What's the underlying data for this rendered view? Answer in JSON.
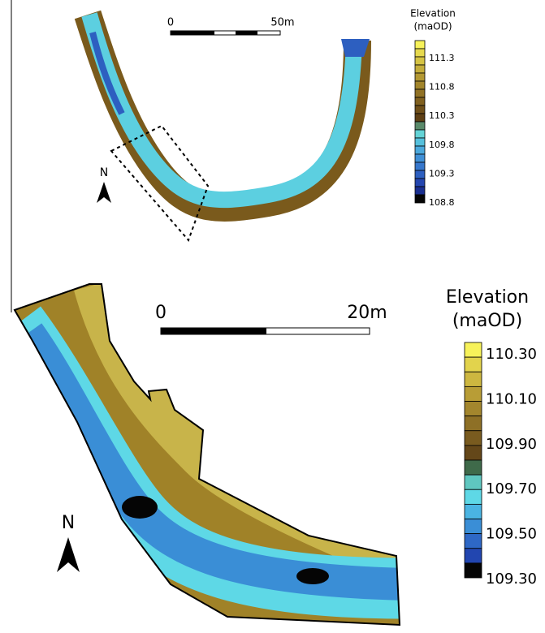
{
  "top_map": {
    "scale_bar": {
      "start": "0",
      "end": "50m"
    },
    "north": "N",
    "legend": {
      "title": [
        "Elevation",
        "(maOD)"
      ],
      "labels": [
        "111.3",
        "110.8",
        "110.3",
        "109.8",
        "109.3",
        "108.8"
      ],
      "colors": [
        "#f7f25a",
        "#e6d94e",
        "#d5c343",
        "#c4ad3a",
        "#b39832",
        "#a2852b",
        "#917225",
        "#80601f",
        "#6f4f19",
        "#5e3f14",
        "#5a8a6a",
        "#63d3d6",
        "#55c0dc",
        "#4aa8dc",
        "#3f8fd6",
        "#3677cc",
        "#2d5fc0",
        "#2446b0",
        "#1a2f90",
        "#050505"
      ]
    }
  },
  "bottom_map": {
    "scale_bar": {
      "start": "0",
      "end": "20m"
    },
    "north": "N",
    "legend": {
      "title": [
        "Elevation",
        "(maOD)"
      ],
      "labels": [
        "110.30",
        "110.10",
        "109.90",
        "109.70",
        "109.50",
        "109.30"
      ],
      "colors": [
        "#f7f25a",
        "#e2d34c",
        "#cdb740",
        "#b89d36",
        "#a3862d",
        "#8e7026",
        "#795b1f",
        "#644719",
        "#3f6a4a",
        "#5fc7c0",
        "#5ed8e6",
        "#4ab4e2",
        "#3a8ed6",
        "#2e68c6",
        "#2246b0",
        "#050505"
      ]
    }
  }
}
